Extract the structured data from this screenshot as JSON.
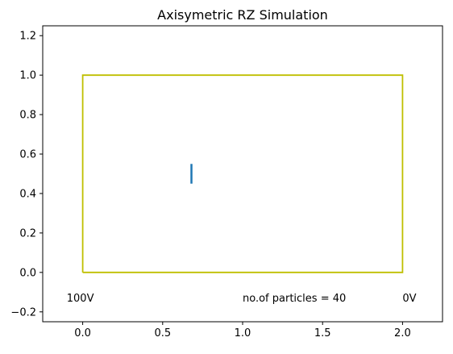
{
  "chart_data": {
    "type": "line",
    "title": "Axisymetric RZ Simulation",
    "xlabel": "",
    "ylabel": "",
    "xlim": [
      -0.25,
      2.25
    ],
    "ylim": [
      -0.25,
      1.25
    ],
    "x_ticks": [
      0.0,
      0.5,
      1.0,
      1.5,
      2.0
    ],
    "x_tick_labels": [
      "0.0",
      "0.5",
      "1.0",
      "1.5",
      "2.0"
    ],
    "y_ticks": [
      -0.2,
      0.0,
      0.2,
      0.4,
      0.6,
      0.8,
      1.0,
      1.2
    ],
    "y_tick_labels": [
      "−0.2",
      "0.0",
      "0.2",
      "0.4",
      "0.6",
      "0.8",
      "1.0",
      "1.2"
    ],
    "grid": false,
    "series": [
      {
        "color": "#bfbf00",
        "x": [
          0.0,
          2.0,
          2.0,
          0.0,
          0.0
        ],
        "y": [
          0.0,
          0.0,
          1.0,
          1.0,
          0.0
        ]
      },
      {
        "color": "#1f77b4",
        "x": [
          0.68,
          0.68
        ],
        "y": [
          0.45,
          0.55
        ]
      }
    ],
    "annotations": [
      {
        "text": "100V",
        "x": -0.1,
        "y": -0.13,
        "align": "start"
      },
      {
        "text": "no.of particles = 40",
        "x": 1.0,
        "y": -0.13,
        "align": "start"
      },
      {
        "text": "0V",
        "x": 2.0,
        "y": -0.13,
        "align": "start"
      }
    ]
  }
}
